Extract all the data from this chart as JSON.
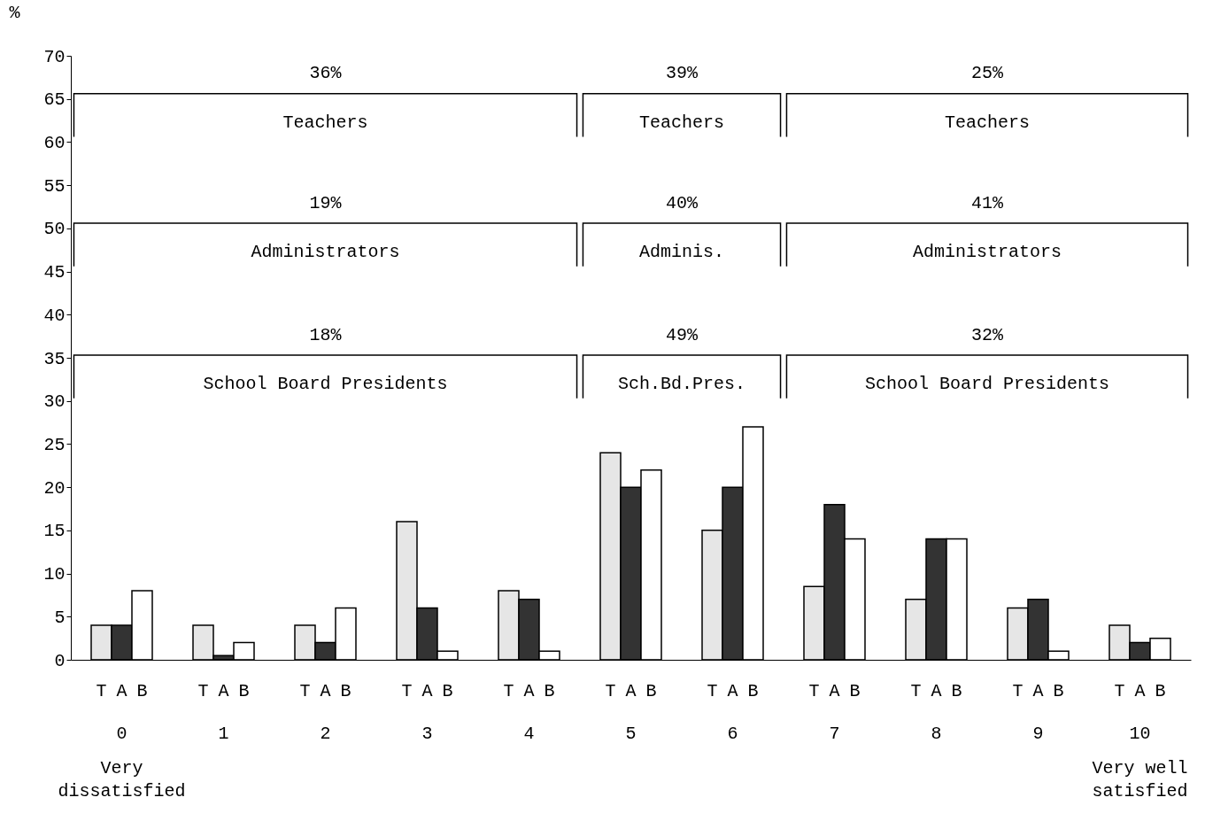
{
  "chart_data": {
    "type": "bar",
    "ylabel": "%",
    "categories": [
      "0",
      "1",
      "2",
      "3",
      "4",
      "5",
      "6",
      "7",
      "8",
      "9",
      "10"
    ],
    "series": [
      {
        "name": "T",
        "color": "#e6e6e6",
        "values": [
          4,
          4,
          4,
          16,
          8,
          24,
          15,
          8.5,
          7,
          6,
          4
        ]
      },
      {
        "name": "A",
        "color": "#333333",
        "values": [
          4,
          0.5,
          2,
          6,
          7,
          20,
          20,
          18,
          14,
          7,
          2
        ]
      },
      {
        "name": "B",
        "color": "#ffffff",
        "values": [
          8,
          2,
          6,
          1,
          1,
          22,
          27,
          14,
          14,
          1,
          2.5
        ]
      }
    ],
    "ylim": [
      0,
      70
    ],
    "yticks": [
      0,
      5,
      10,
      15,
      20,
      25,
      30,
      35,
      40,
      45,
      50,
      55,
      60,
      65,
      70
    ],
    "legend": false,
    "annotations": [
      "36%",
      "Teachers",
      "39%",
      "Teachers",
      "25%",
      "Teachers",
      "19%",
      "Administrators",
      "40%",
      "Adminis.",
      "41%",
      "Administrators",
      "18%",
      "School Board Presidents",
      "49%",
      "Sch.Bd.Pres.",
      "32%",
      "School Board Presidents",
      "Very\ndissatisfied",
      "Very well\nsatisfied"
    ]
  }
}
